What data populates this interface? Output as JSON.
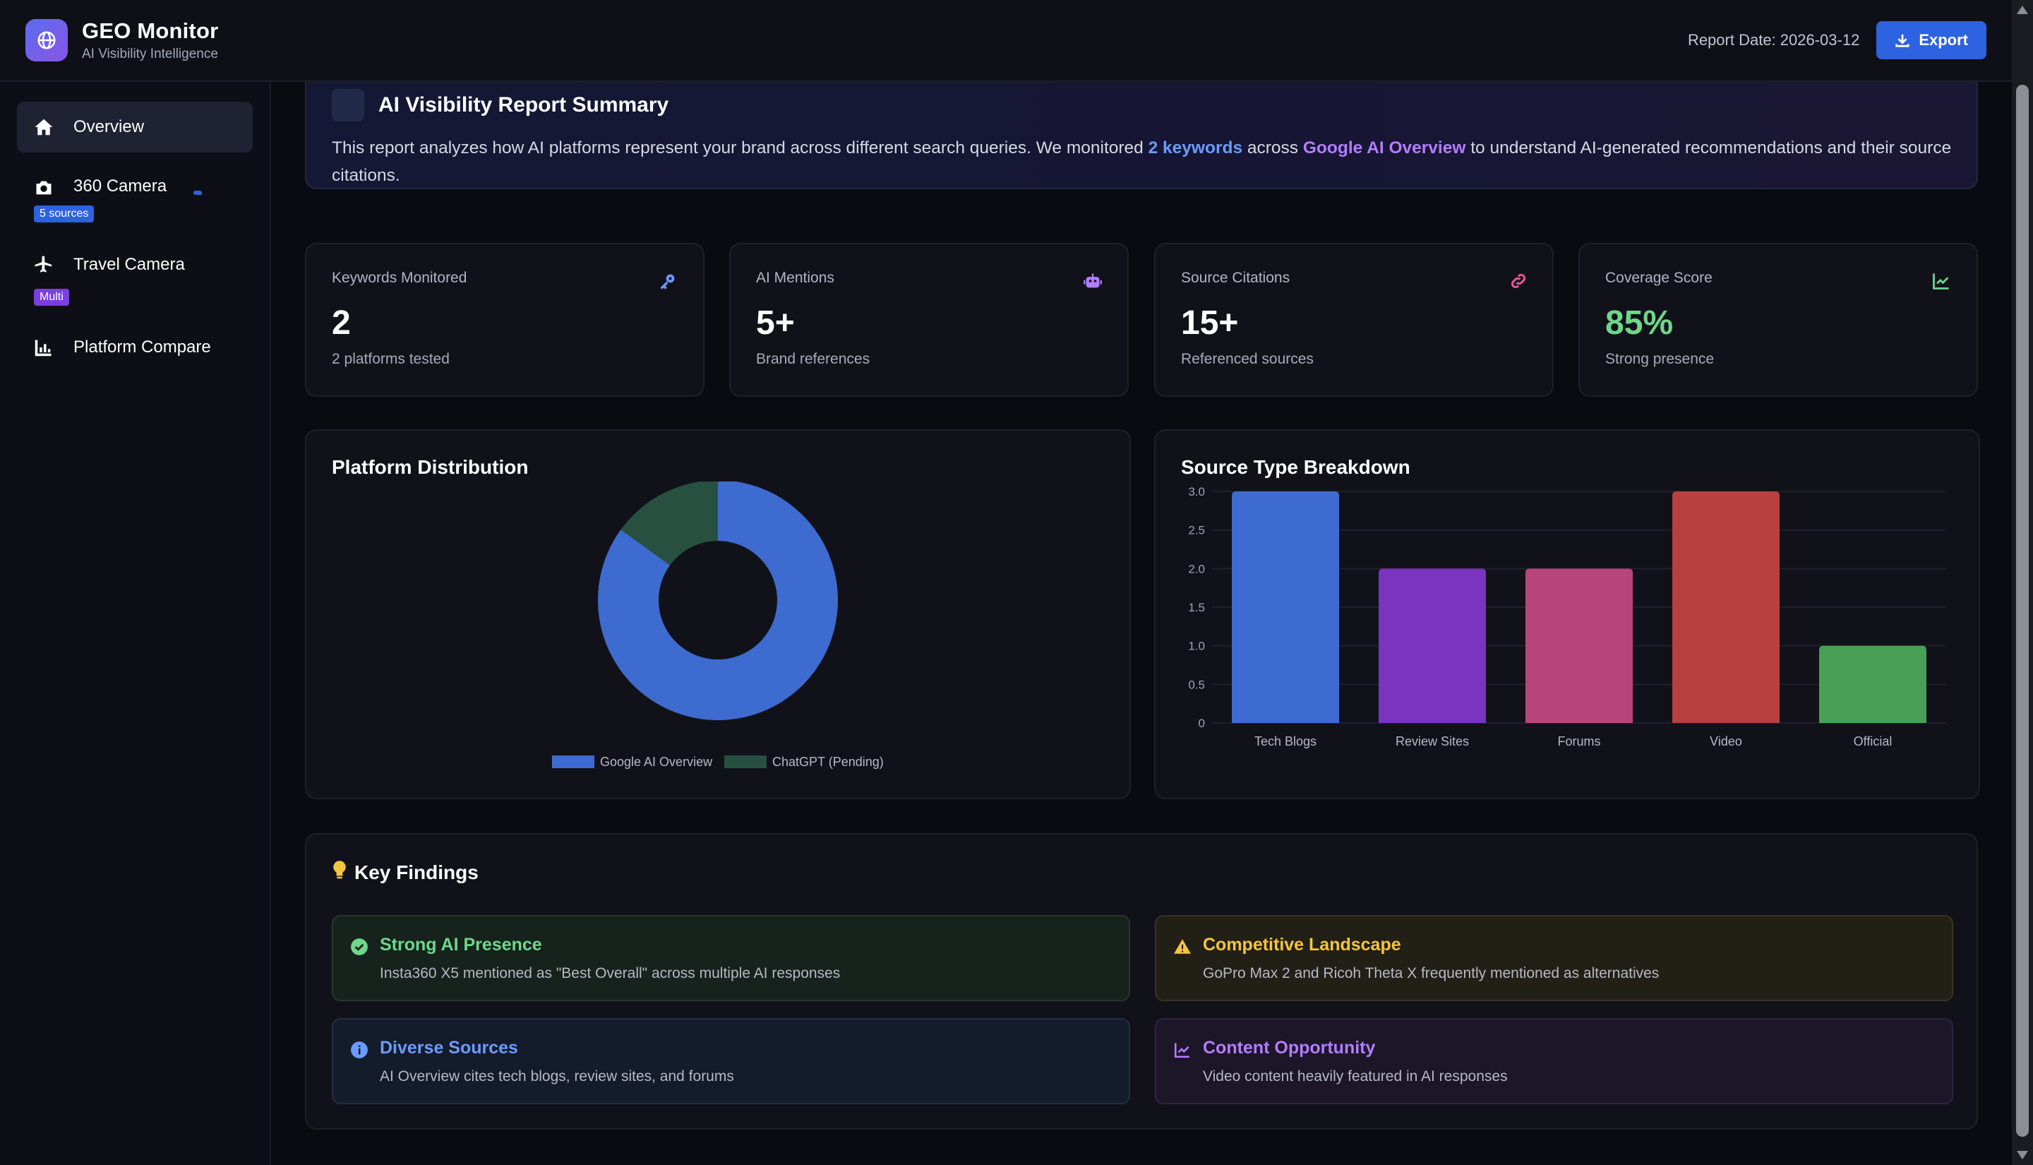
{
  "app": {
    "title": "GEO Monitor",
    "subtitle": "AI Visibility Intelligence",
    "report_date": "Report Date: 2026-03-12",
    "export_label": "Export",
    "logo_icon": "globe-icon"
  },
  "sidebar": {
    "items": [
      {
        "label": "Overview",
        "icon": "home-icon",
        "active": true
      },
      {
        "label": "360 Camera",
        "icon": "camera-icon",
        "badge": "5 sources"
      },
      {
        "label": "Travel Camera",
        "icon": "plane-icon",
        "badge": "Multi"
      },
      {
        "label": "Platform Compare",
        "icon": "bar-chart-icon"
      }
    ]
  },
  "summary": {
    "title": "AI Visibility Report Summary",
    "text_1": "This report analyzes how AI platforms represent your brand across different search queries. We monitored ",
    "keywords": "2 keywords",
    "text_2": " across ",
    "platform": "Google AI Overview",
    "text_3": " to understand AI-generated recommendations and their source citations."
  },
  "stats": [
    {
      "label": "Keywords Monitored",
      "value": "2",
      "sub": "2 platforms tested",
      "icon": "key-icon",
      "color": "#6b9bff"
    },
    {
      "label": "AI Mentions",
      "value": "5+",
      "sub": "Brand references",
      "icon": "robot-icon",
      "color": "#b47cff"
    },
    {
      "label": "Source Citations",
      "value": "15+",
      "sub": "Referenced sources",
      "icon": "link-icon",
      "color": "#e8559a"
    },
    {
      "label": "Coverage Score",
      "value": "85%",
      "sub": "Strong presence",
      "icon": "chart-line-icon",
      "color": "#6fd68b"
    }
  ],
  "panels": {
    "platform_title": "Platform Distribution",
    "source_title": "Source Type Breakdown"
  },
  "chart_data": [
    {
      "type": "pie",
      "variant": "doughnut",
      "labels": [
        "Google AI Overview",
        "ChatGPT (Pending)"
      ],
      "values": [
        85,
        15
      ],
      "colors": [
        "#3e6bd0",
        "#285040"
      ],
      "legend": "bottom"
    },
    {
      "type": "bar",
      "categories": [
        "Tech Blogs",
        "Review Sites",
        "Forums",
        "Video",
        "Official"
      ],
      "values": [
        3,
        2,
        2,
        3,
        1
      ],
      "colors": [
        "#3e6bd0",
        "#7a34c0",
        "#b8457a",
        "#b84040",
        "#48a054"
      ],
      "ylim": [
        0,
        3
      ],
      "yticks": [
        "0",
        "0.5",
        "1.0",
        "1.5",
        "2.0",
        "2.5",
        "3.0"
      ],
      "grid": true
    }
  ],
  "findings": {
    "title": "Key Findings",
    "items": [
      {
        "title": "Strong AI Presence",
        "text": "Insta360 X5 mentioned as \"Best Overall\" across multiple AI responses",
        "icon": "check-circle-icon"
      },
      {
        "title": "Competitive Landscape",
        "text": "GoPro Max 2 and Ricoh Theta X frequently mentioned as alternatives",
        "icon": "warning-icon"
      },
      {
        "title": "Diverse Sources",
        "text": "AI Overview cites tech blogs, review sites, and forums",
        "icon": "info-icon"
      },
      {
        "title": "Content Opportunity",
        "text": "Video content heavily featured in AI responses",
        "icon": "chart-line-icon"
      }
    ]
  }
}
